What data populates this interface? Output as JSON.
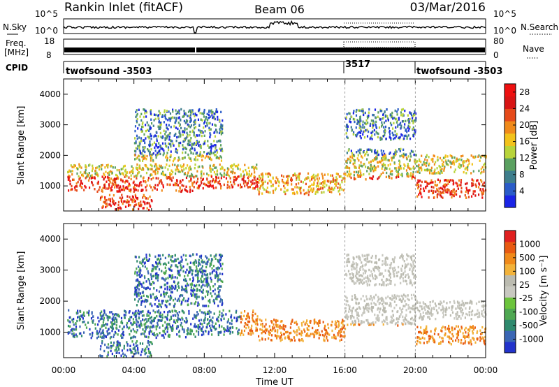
{
  "header": {
    "station": "Rankin Inlet (fitACF)",
    "beam": "Beam 06",
    "date": "03/Mar/2016"
  },
  "colors": {
    "power_scale": [
      "#1a24e6",
      "#2a5cc8",
      "#3e7e8c",
      "#5aa060",
      "#b8d43a",
      "#f2c21a",
      "#f08a1a",
      "#e64a1a",
      "#d81414",
      "#ee1010"
    ],
    "velocity_scale": [
      "#2233cc",
      "#3a66b4",
      "#2f8a6e",
      "#4fa852",
      "#6cc43c",
      "#c8c8c0",
      "#bbbbb0",
      "#f2b23a",
      "#f08a1a",
      "#e85a12",
      "#e02020"
    ]
  },
  "chart_data": [
    {
      "type": "line",
      "panel": "noise",
      "left_label": "N.Sky",
      "right_label": "N.Search",
      "yticks_left": [
        "10^5",
        "10^0"
      ],
      "yticks_right": [
        "10^5",
        "10^0"
      ]
    },
    {
      "type": "line",
      "panel": "frequency",
      "left_label": "Freq.",
      "left_unit": "[MHz]",
      "right_label": "Nave",
      "yticks_left": [
        "18",
        "8"
      ],
      "yticks_right": [
        "80",
        "0"
      ],
      "ylim_left": [
        8,
        18
      ],
      "ylim_right": [
        0,
        80
      ]
    },
    {
      "type": "table",
      "panel": "cpid",
      "label": "CPID",
      "segments": [
        {
          "name": "twofsound -3503",
          "start_hour": 0,
          "end_hour": 16
        },
        {
          "name": "3517",
          "start_hour": 16,
          "end_hour": 20
        },
        {
          "name": "twofsound -3503",
          "start_hour": 20,
          "end_hour": 24
        }
      ]
    },
    {
      "type": "heatmap",
      "panel": "power",
      "ylabel": "Slant Range [km]",
      "ylim": [
        180,
        4500
      ],
      "yticks": [
        1000,
        2000,
        3000,
        4000
      ],
      "colorbar_label": "Power [dB]",
      "colorbar_ticks": [
        4,
        8,
        12,
        16,
        20,
        24,
        28
      ],
      "colorbar_range": [
        0,
        30
      ]
    },
    {
      "type": "heatmap",
      "panel": "velocity",
      "ylabel": "Slant Range [km]",
      "ylim": [
        180,
        4500
      ],
      "yticks": [
        1000,
        2000,
        3000,
        4000
      ],
      "colorbar_label": "Velocity [m s⁻¹]",
      "colorbar_ticks": [
        "1000",
        "500",
        "100",
        "25",
        "-25",
        "-100",
        "-500",
        "-1000"
      ]
    }
  ],
  "xaxis": {
    "label": "Time UT",
    "ticks": [
      "00:00",
      "04:00",
      "08:00",
      "12:00",
      "16:00",
      "20:00",
      "00:00"
    ],
    "xlim_hours": [
      0,
      24
    ]
  }
}
